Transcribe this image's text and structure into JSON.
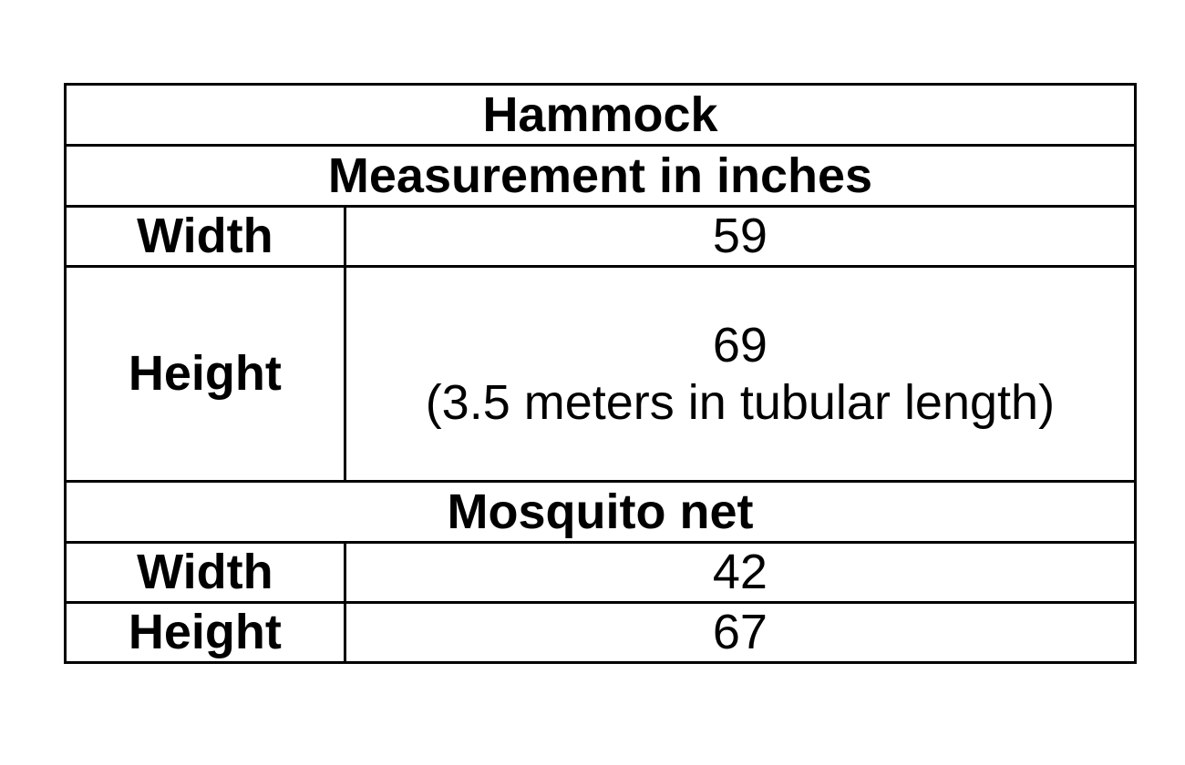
{
  "table": {
    "title": "Hammock",
    "subtitle": "Measurement in inches",
    "hammock_rows": [
      {
        "label": "Width",
        "value": "59"
      },
      {
        "label": "Height",
        "value": "69",
        "note": "(3.5 meters in tubular length)"
      }
    ],
    "section_title": "Mosquito net",
    "net_rows": [
      {
        "label": "Width",
        "value": "42"
      },
      {
        "label": "Height",
        "value": "67"
      }
    ]
  }
}
